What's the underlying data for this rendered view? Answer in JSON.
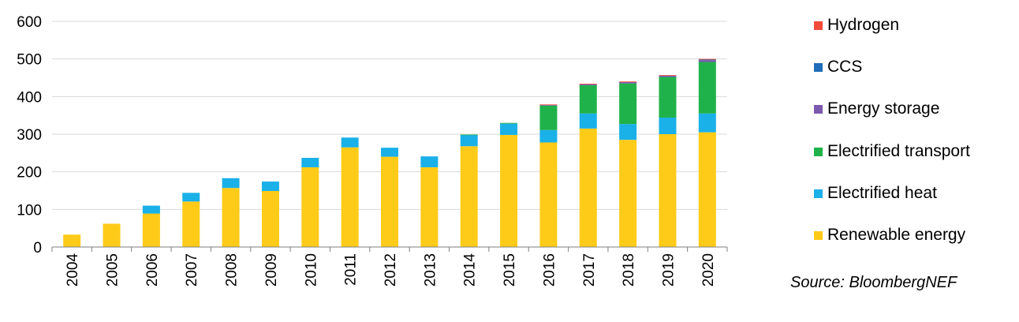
{
  "source": "Source: BloombergNEF",
  "chart_data": {
    "type": "bar",
    "stacked": true,
    "title": "",
    "xlabel": "",
    "ylabel": "",
    "ylim": [
      0,
      600
    ],
    "yticks": [
      0,
      100,
      200,
      300,
      400,
      500,
      600
    ],
    "grid": true,
    "legend_position": "right",
    "categories": [
      "2004",
      "2005",
      "2006",
      "2007",
      "2008",
      "2009",
      "2010",
      "2011",
      "2012",
      "2013",
      "2014",
      "2015",
      "2016",
      "2017",
      "2018",
      "2019",
      "2020"
    ],
    "series": [
      {
        "name": "Renewable energy",
        "color": "#FFCB19",
        "values": [
          33,
          62,
          89,
          121,
          157,
          149,
          212,
          265,
          240,
          212,
          268,
          298,
          278,
          315,
          285,
          300,
          305
        ]
      },
      {
        "name": "Electrified heat",
        "color": "#1AB0E8",
        "values": [
          0,
          0,
          21,
          23,
          26,
          25,
          25,
          26,
          24,
          29,
          30,
          30,
          33,
          40,
          42,
          44,
          50
        ]
      },
      {
        "name": "Electrified transport",
        "color": "#20B24A",
        "values": [
          0,
          0,
          0,
          0,
          0,
          0,
          0,
          0,
          0,
          0,
          1,
          2,
          65,
          75,
          108,
          108,
          137
        ]
      },
      {
        "name": "Energy storage",
        "color": "#7B59AC",
        "values": [
          0,
          0,
          0,
          0,
          0,
          0,
          0,
          0,
          0,
          0,
          0,
          0,
          2,
          3,
          4,
          4,
          5
        ]
      },
      {
        "name": "CCS",
        "color": "#1F6CB8",
        "values": [
          0,
          0,
          0,
          0,
          0,
          0,
          0,
          0,
          0,
          0,
          0,
          0,
          0,
          0,
          0,
          0,
          2
        ]
      },
      {
        "name": "Hydrogen",
        "color": "#F24B3C",
        "values": [
          0,
          0,
          0,
          0,
          0,
          0,
          0,
          0,
          0,
          0,
          0,
          0,
          1,
          1,
          1,
          1,
          1
        ]
      }
    ]
  }
}
